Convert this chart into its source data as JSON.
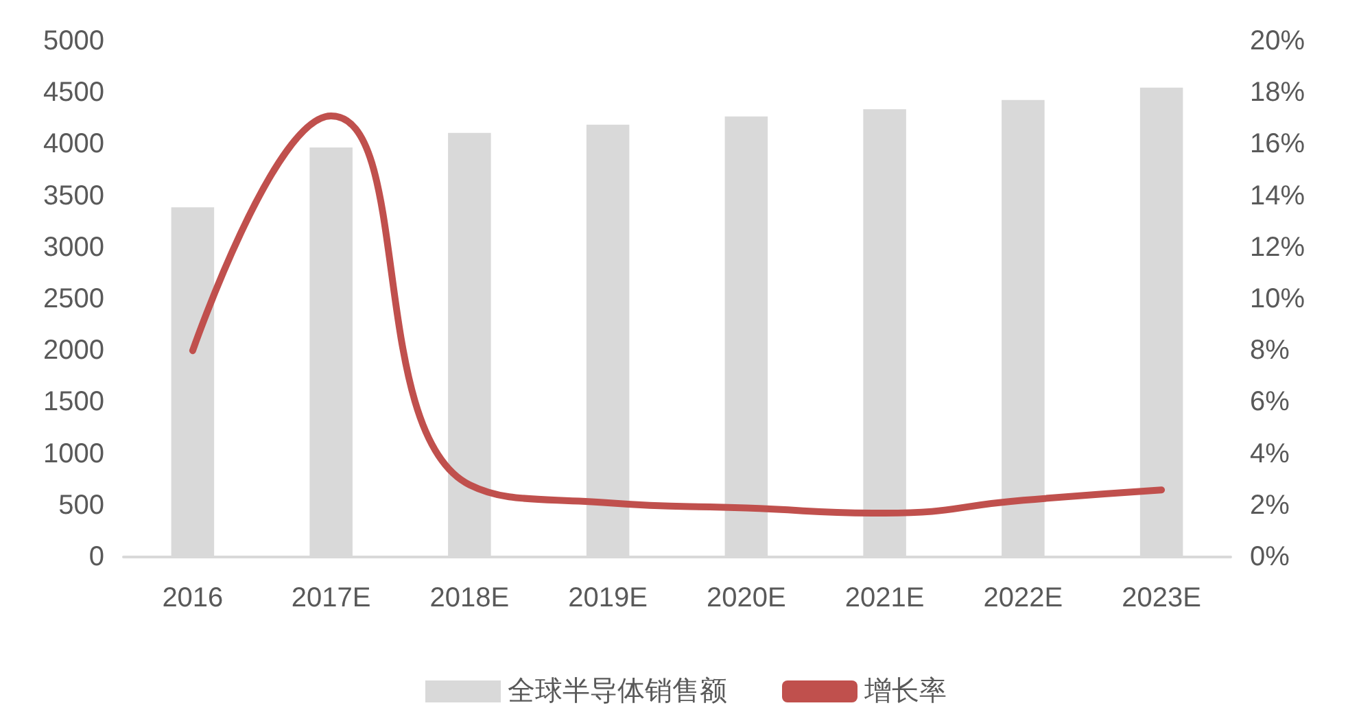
{
  "chart_data": {
    "type": "bar",
    "categories": [
      "2016",
      "2017E",
      "2018E",
      "2019E",
      "2020E",
      "2021E",
      "2022E",
      "2023E"
    ],
    "series": [
      {
        "name": "全球半导体销售额",
        "color": "#d9d9d9",
        "values": [
          3390,
          3970,
          4110,
          4190,
          4270,
          4340,
          4430,
          4550
        ]
      },
      {
        "name": "增长率",
        "type": "line",
        "axis": "y2",
        "color": "#c0504d",
        "values": [
          8.0,
          17.1,
          2.8,
          2.1,
          1.9,
          1.7,
          2.2,
          2.6
        ]
      }
    ],
    "ylim": [
      0,
      5000
    ],
    "yticks": [
      0,
      500,
      1000,
      1500,
      2000,
      2500,
      3000,
      3500,
      4000,
      4500,
      5000
    ],
    "y2lim": [
      0,
      20
    ],
    "y2ticks": [
      {
        "value": 0,
        "label": "0%"
      },
      {
        "value": 2,
        "label": "2%"
      },
      {
        "value": 4,
        "label": "4%"
      },
      {
        "value": 6,
        "label": "6%"
      },
      {
        "value": 8,
        "label": "8%"
      },
      {
        "value": 10,
        "label": "10%"
      },
      {
        "value": 12,
        "label": "12%"
      },
      {
        "value": 14,
        "label": "14%"
      },
      {
        "value": 16,
        "label": "16%"
      },
      {
        "value": 18,
        "label": "18%"
      },
      {
        "value": 20,
        "label": "20%"
      }
    ],
    "grid": false,
    "legend": "bottom",
    "marker": "none"
  }
}
